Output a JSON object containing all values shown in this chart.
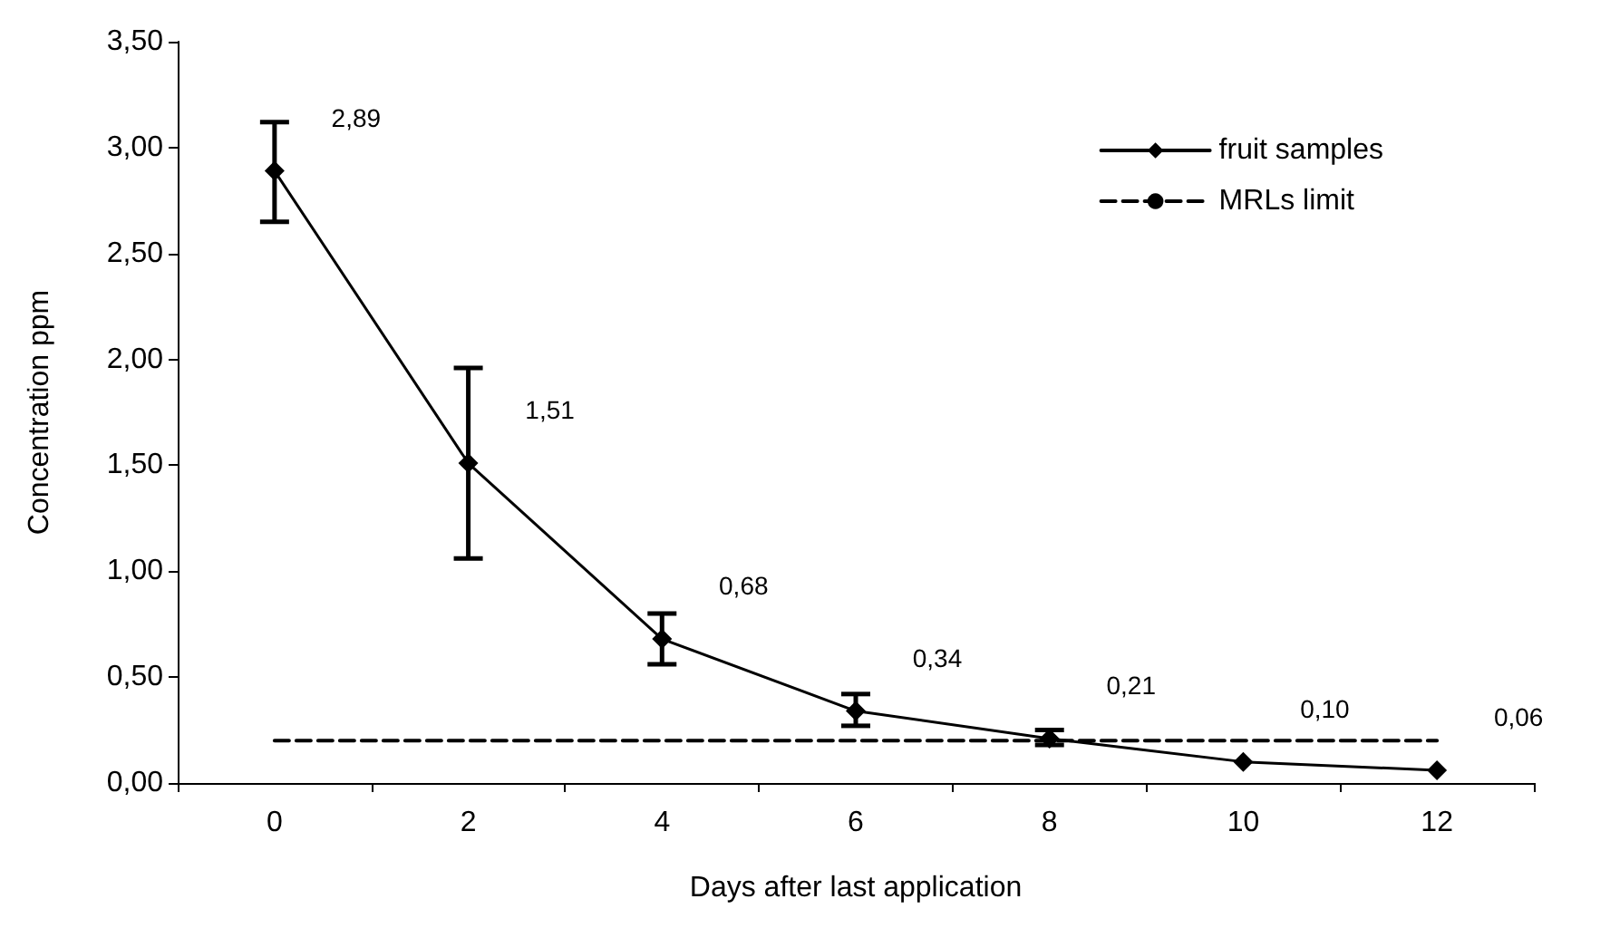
{
  "chart_data": {
    "type": "line",
    "xlabel": "Days after last application",
    "ylabel": "Concentration ppm",
    "categories": [
      "0",
      "2",
      "4",
      "6",
      "8",
      "10",
      "12"
    ],
    "ylim": [
      0,
      3.5
    ],
    "yticks": [
      {
        "value": 0,
        "label": "0,00"
      },
      {
        "value": 0.5,
        "label": "0,50"
      },
      {
        "value": 1,
        "label": "1,00"
      },
      {
        "value": 1.5,
        "label": "1,50"
      },
      {
        "value": 2,
        "label": "2,00"
      },
      {
        "value": 2.5,
        "label": "2,50"
      },
      {
        "value": 3,
        "label": "3,00"
      },
      {
        "value": 3.5,
        "label": "3,50"
      }
    ],
    "series": [
      {
        "name": "fruit samples",
        "color": "#000000",
        "marker": "diamond",
        "line_style": "solid",
        "values": [
          2.89,
          1.51,
          0.68,
          0.34,
          0.21,
          0.1,
          0.06
        ],
        "value_labels": [
          "2,89",
          "1,51",
          "0,68",
          "0,34",
          "0,21",
          "0,10",
          "0,06"
        ],
        "errors": [
          [
            2.65,
            3.12
          ],
          [
            1.06,
            1.96
          ],
          [
            0.56,
            0.8
          ],
          [
            0.27,
            0.42
          ],
          [
            0.18,
            0.25
          ],
          null,
          null
        ]
      },
      {
        "name": "MRLs limit",
        "color": "#000000",
        "marker": "none",
        "line_style": "dashed",
        "values": [
          0.2,
          0.2,
          0.2,
          0.2,
          0.2,
          0.2,
          0.2
        ]
      }
    ],
    "grid": false,
    "legend": "top right"
  }
}
